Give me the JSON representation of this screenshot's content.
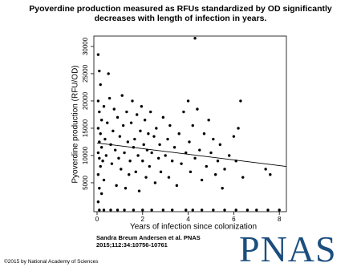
{
  "chart_data": {
    "type": "scatter",
    "title": "Pyoverdine production measured as RFUs standardized by OD significantly decreases with length of infection in years.",
    "x_label": "Years of infection since colonization",
    "y_label": "Pyoverdine production (RFU/OD)",
    "color": "#000000",
    "x": [
      0.05,
      0.1,
      0.15,
      0.05,
      0.1,
      0.2,
      0.05,
      0.15,
      0.1,
      0.2,
      0.05,
      0.1,
      0.25,
      0.15,
      0.05,
      0.3,
      0.1,
      0.2,
      0.05,
      0.3,
      0.35,
      0.4,
      0.45,
      0.5,
      0.55,
      0.6,
      0.65,
      0.7,
      0.75,
      0.8,
      0.85,
      0.9,
      0.95,
      1.0,
      1.05,
      1.1,
      1.15,
      1.2,
      1.25,
      1.3,
      1.35,
      1.4,
      1.45,
      1.5,
      1.55,
      1.6,
      1.65,
      1.7,
      1.75,
      1.8,
      1.85,
      1.9,
      1.95,
      2.0,
      2.05,
      2.1,
      2.15,
      2.2,
      2.25,
      2.3,
      2.35,
      2.4,
      2.5,
      2.55,
      2.6,
      2.7,
      2.75,
      2.8,
      2.9,
      3.0,
      3.1,
      3.15,
      3.2,
      3.3,
      3.4,
      3.5,
      3.6,
      3.7,
      3.8,
      3.9,
      4.0,
      4.05,
      4.1,
      4.2,
      4.3,
      4.4,
      4.5,
      4.6,
      4.7,
      4.8,
      4.9,
      5.0,
      5.1,
      5.2,
      5.3,
      5.4,
      5.5,
      5.6,
      5.8,
      6.0,
      6.1,
      6.2,
      6.3,
      6.4,
      7.4,
      7.6,
      4.3,
      0.1,
      0.3,
      0.6,
      0.9,
      1.2,
      1.6,
      2.0,
      2.4,
      2.9,
      3.3,
      3.9,
      4.2,
      4.6,
      5.1,
      5.6,
      6.1,
      6.6,
      7.0,
      7.5,
      8.0
    ],
    "values": [
      28500,
      25500,
      23000,
      20000,
      18000,
      16500,
      15000,
      14000,
      12500,
      11500,
      10500,
      9500,
      9000,
      8000,
      6500,
      5500,
      4000,
      3000,
      1500,
      19000,
      13000,
      10000,
      16000,
      25000,
      20500,
      12000,
      8500,
      14500,
      18500,
      11000,
      4500,
      17000,
      9500,
      13500,
      7500,
      21000,
      15500,
      10500,
      4000,
      18000,
      12500,
      6500,
      9000,
      16000,
      20000,
      11500,
      13000,
      7000,
      17500,
      10000,
      3500,
      14500,
      19000,
      9000,
      12000,
      16500,
      6000,
      11000,
      14000,
      8000,
      18000,
      10500,
      13500,
      5000,
      15000,
      9500,
      12000,
      7000,
      17000,
      10000,
      13000,
      6000,
      15500,
      9000,
      11500,
      4500,
      14000,
      8500,
      18000,
      10500,
      20000,
      12500,
      7000,
      15500,
      9500,
      18500,
      11000,
      5500,
      14000,
      8000,
      16500,
      10500,
      13000,
      6500,
      9000,
      12000,
      4000,
      7500,
      10000,
      13500,
      9000,
      15000,
      20000,
      6000,
      7500,
      6500,
      31500,
      0,
      0,
      0,
      0,
      0,
      0,
      0,
      0,
      0,
      0,
      0,
      0,
      0,
      0,
      0,
      0,
      0,
      0,
      0,
      0
    ],
    "trend_line": {
      "x": [
        0,
        8.3
      ],
      "values": [
        12300,
        8000
      ]
    },
    "xlim": [
      -0.14,
      8.31
    ],
    "ylim": [
      -300,
      31900
    ],
    "xticks": [
      0,
      2,
      4,
      6,
      8
    ],
    "yticks": [
      5000,
      10000,
      15000,
      20000,
      25000,
      30000
    ]
  },
  "citation": "Sandra Breum Andersen et al. PNAS 2015;112:34:10756-10761",
  "logo": "PNAS",
  "copyright": "©2015 by National Academy of Sciences"
}
